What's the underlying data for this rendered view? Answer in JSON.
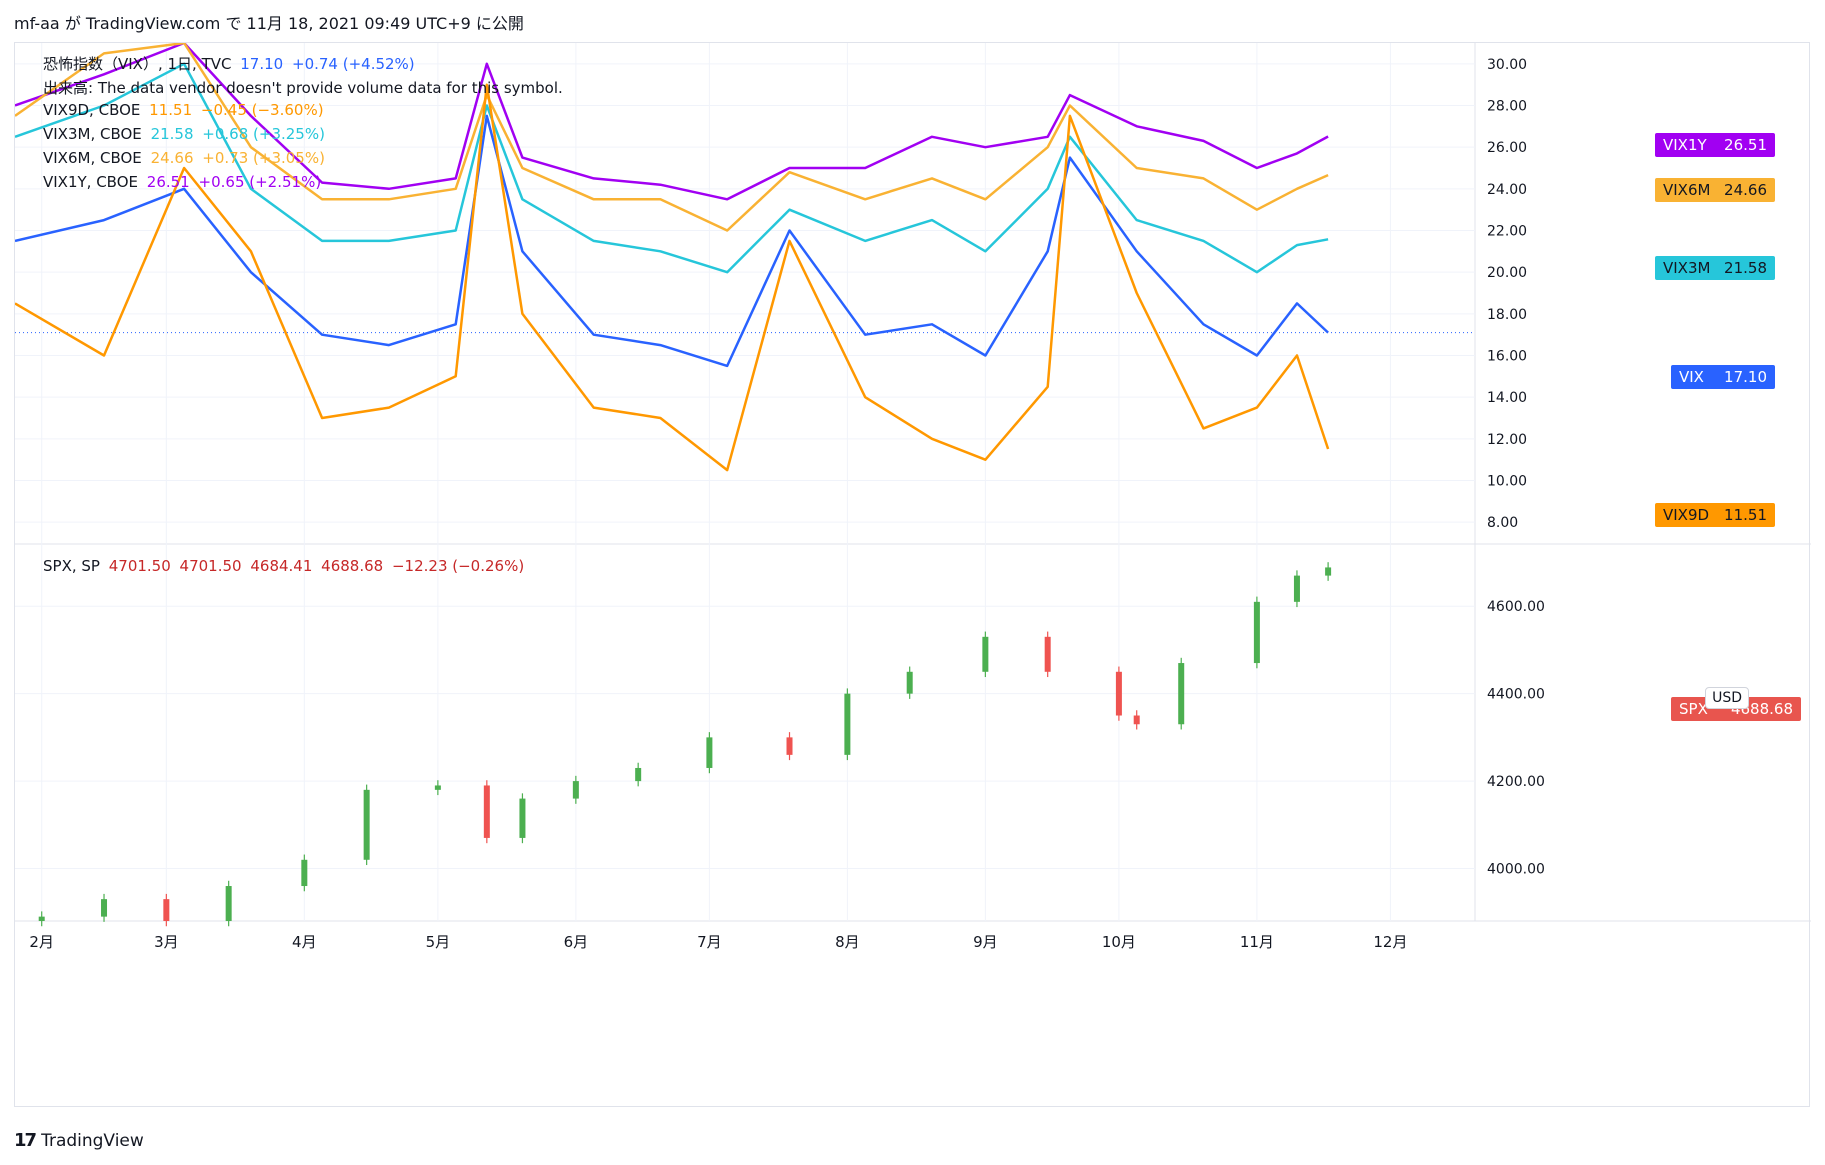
{
  "header": {
    "text": "mf-aa が TradingView.com で 11月 18, 2021 09:49 UTC+9 に公開"
  },
  "footer": {
    "logo_text": "TradingView"
  },
  "colors": {
    "vix": "#2962ff",
    "vix9d": "#ff9800",
    "vix3m": "#26c6da",
    "vix6m": "#f9b233",
    "vix1y": "#a100f2",
    "spx_up": "#4caf50",
    "spx_down": "#ef5350",
    "spx_tag": "#e8554e",
    "grid": "#f0f3fa"
  },
  "legend_top": {
    "line1": {
      "name": "恐怖指数（VIX）, 1日, TVC",
      "value": "17.10",
      "change": "+0.74 (+4.52%)"
    },
    "line2": {
      "text": "出来高: The data vendor doesn't provide volume data for this symbol."
    },
    "line3": {
      "name": "VIX9D, CBOE",
      "value": "11.51",
      "change": "−0.45 (−3.60%)"
    },
    "line4": {
      "name": "VIX3M, CBOE",
      "value": "21.58",
      "change": "+0.68 (+3.25%)"
    },
    "line5": {
      "name": "VIX6M, CBOE",
      "value": "24.66",
      "change": "+0.73 (+3.05%)"
    },
    "line6": {
      "name": "VIX1Y, CBOE",
      "value": "26.51",
      "change": "+0.65 (+2.51%)"
    }
  },
  "legend_bottom": {
    "symbol": "SPX, SP",
    "open": "4701.50",
    "high": "4701.50",
    "low": "4684.41",
    "close": "4688.68",
    "change": "−12.23 (−0.26%)"
  },
  "currency_button": "USD",
  "tags": {
    "vix1y": {
      "name": "VIX1Y",
      "value": "26.51"
    },
    "vix6m": {
      "name": "VIX6M",
      "value": "24.66"
    },
    "vix3m": {
      "name": "VIX3M",
      "value": "21.58"
    },
    "vix": {
      "name": "VIX",
      "value": "17.10"
    },
    "vix9d": {
      "name": "VIX9D",
      "value": "11.51"
    },
    "spx": {
      "name": "SPX",
      "value": "4688.68"
    }
  },
  "chart_data": [
    {
      "type": "line",
      "title": "",
      "y_ticks": [
        "8.00",
        "10.00",
        "12.00",
        "14.00",
        "16.00",
        "18.00",
        "20.00",
        "22.00",
        "24.00",
        "26.00",
        "28.00",
        "30.00"
      ],
      "ylim": [
        7,
        31
      ],
      "x_labels": [
        "2月",
        "3月",
        "4月",
        "5月",
        "6月",
        "7月",
        "8月",
        "9月",
        "10月",
        "11月",
        "12月"
      ],
      "x_label_dates": [
        "2021-02-01",
        "2021-03-01",
        "2021-04-01",
        "2021-05-01",
        "2021-06-01",
        "2021-07-01",
        "2021-08-01",
        "2021-09-01",
        "2021-10-01",
        "2021-11-01",
        "2021-12-01"
      ],
      "x_range": [
        "2021-01-26",
        "2021-12-20"
      ],
      "series": [
        {
          "name": "VIX1Y",
          "color": "#a100f2",
          "x": [
            "2021-01-26",
            "2021-02-15",
            "2021-03-05",
            "2021-03-20",
            "2021-04-05",
            "2021-04-20",
            "2021-05-05",
            "2021-05-12",
            "2021-05-20",
            "2021-06-05",
            "2021-06-20",
            "2021-07-05",
            "2021-07-19",
            "2021-08-05",
            "2021-08-20",
            "2021-09-01",
            "2021-09-15",
            "2021-09-20",
            "2021-10-05",
            "2021-10-20",
            "2021-11-01",
            "2021-11-10",
            "2021-11-17"
          ],
          "values": [
            28.0,
            29.5,
            31.0,
            27.5,
            24.3,
            24.0,
            24.5,
            30.0,
            25.5,
            24.5,
            24.2,
            23.5,
            25.0,
            25.0,
            26.5,
            26.0,
            26.5,
            28.5,
            27.0,
            26.3,
            25.0,
            25.7,
            26.51
          ]
        },
        {
          "name": "VIX6M",
          "color": "#f9b233",
          "x": [
            "2021-01-26",
            "2021-02-15",
            "2021-03-05",
            "2021-03-20",
            "2021-04-05",
            "2021-04-20",
            "2021-05-05",
            "2021-05-12",
            "2021-05-20",
            "2021-06-05",
            "2021-06-20",
            "2021-07-05",
            "2021-07-19",
            "2021-08-05",
            "2021-08-20",
            "2021-09-01",
            "2021-09-15",
            "2021-09-20",
            "2021-10-05",
            "2021-10-20",
            "2021-11-01",
            "2021-11-10",
            "2021-11-17"
          ],
          "values": [
            27.5,
            30.5,
            31.0,
            26.0,
            23.5,
            23.5,
            24.0,
            28.5,
            25.0,
            23.5,
            23.5,
            22.0,
            24.8,
            23.5,
            24.5,
            23.5,
            26.0,
            28.0,
            25.0,
            24.5,
            23.0,
            24.0,
            24.66
          ]
        },
        {
          "name": "VIX3M",
          "color": "#26c6da",
          "x": [
            "2021-01-26",
            "2021-02-15",
            "2021-03-05",
            "2021-03-20",
            "2021-04-05",
            "2021-04-20",
            "2021-05-05",
            "2021-05-12",
            "2021-05-20",
            "2021-06-05",
            "2021-06-20",
            "2021-07-05",
            "2021-07-19",
            "2021-08-05",
            "2021-08-20",
            "2021-09-01",
            "2021-09-15",
            "2021-09-20",
            "2021-10-05",
            "2021-10-20",
            "2021-11-01",
            "2021-11-10",
            "2021-11-17"
          ],
          "values": [
            26.5,
            28.0,
            30.0,
            24.0,
            21.5,
            21.5,
            22.0,
            28.0,
            23.5,
            21.5,
            21.0,
            20.0,
            23.0,
            21.5,
            22.5,
            21.0,
            24.0,
            26.5,
            22.5,
            21.5,
            20.0,
            21.3,
            21.58
          ]
        },
        {
          "name": "VIX",
          "color": "#2962ff",
          "x": [
            "2021-01-26",
            "2021-02-15",
            "2021-03-05",
            "2021-03-20",
            "2021-04-05",
            "2021-04-20",
            "2021-05-05",
            "2021-05-12",
            "2021-05-20",
            "2021-06-05",
            "2021-06-20",
            "2021-07-05",
            "2021-07-19",
            "2021-08-05",
            "2021-08-20",
            "2021-09-01",
            "2021-09-15",
            "2021-09-20",
            "2021-10-05",
            "2021-10-20",
            "2021-11-01",
            "2021-11-10",
            "2021-11-17"
          ],
          "values": [
            21.5,
            22.5,
            24.0,
            20.0,
            17.0,
            16.5,
            17.5,
            27.5,
            21.0,
            17.0,
            16.5,
            15.5,
            22.0,
            17.0,
            17.5,
            16.0,
            21.0,
            25.5,
            21.0,
            17.5,
            16.0,
            18.5,
            17.1
          ]
        },
        {
          "name": "VIX9D",
          "color": "#ff9800",
          "x": [
            "2021-01-26",
            "2021-02-15",
            "2021-03-05",
            "2021-03-20",
            "2021-04-05",
            "2021-04-20",
            "2021-05-05",
            "2021-05-12",
            "2021-05-20",
            "2021-06-05",
            "2021-06-20",
            "2021-07-05",
            "2021-07-19",
            "2021-08-05",
            "2021-08-20",
            "2021-09-01",
            "2021-09-15",
            "2021-09-20",
            "2021-10-05",
            "2021-10-20",
            "2021-11-01",
            "2021-11-10",
            "2021-11-17"
          ],
          "values": [
            18.5,
            16.0,
            25.0,
            21.0,
            13.0,
            13.5,
            15.0,
            29.0,
            18.0,
            13.5,
            13.0,
            10.5,
            21.5,
            14.0,
            12.0,
            11.0,
            14.5,
            27.5,
            19.0,
            12.5,
            13.5,
            16.0,
            11.51
          ]
        }
      ]
    },
    {
      "type": "candlestick",
      "title": "",
      "y_ticks": [
        "4000.00",
        "4200.00",
        "4400.00",
        "4600.00"
      ],
      "ylim": [
        3880,
        4740
      ],
      "x_range": [
        "2021-01-26",
        "2021-12-20"
      ],
      "series": [
        {
          "name": "SPX",
          "x": [
            "2021-02-01",
            "2021-02-15",
            "2021-03-01",
            "2021-03-15",
            "2021-04-01",
            "2021-04-15",
            "2021-05-01",
            "2021-05-12",
            "2021-05-20",
            "2021-06-01",
            "2021-06-15",
            "2021-07-01",
            "2021-07-19",
            "2021-08-01",
            "2021-08-15",
            "2021-09-01",
            "2021-09-15",
            "2021-10-01",
            "2021-10-05",
            "2021-10-15",
            "2021-11-01",
            "2021-11-10",
            "2021-11-17"
          ],
          "close": [
            3890,
            3930,
            3880,
            3960,
            4020,
            4180,
            4190,
            4070,
            4160,
            4200,
            4230,
            4300,
            4260,
            4400,
            4450,
            4530,
            4450,
            4350,
            4330,
            4470,
            4610,
            4670,
            4688.68
          ]
        }
      ]
    }
  ]
}
